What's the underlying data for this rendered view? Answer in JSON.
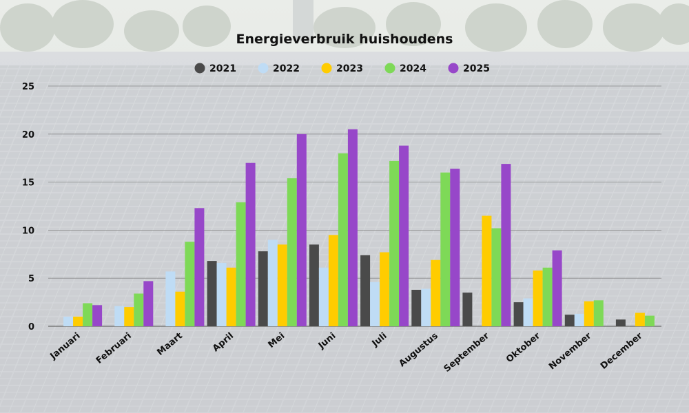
{
  "chart_data": {
    "type": "bar",
    "title": "Energieverbruik huishoudens",
    "categories": [
      "Januari",
      "Februari",
      "Maart",
      "April",
      "Mei",
      "Juni",
      "Juli",
      "Augustus",
      "September",
      "Oktober",
      "November",
      "December"
    ],
    "series": [
      {
        "name": "2021",
        "color": "#4a4a4a",
        "values": [
          0,
          0,
          0,
          6.8,
          7.8,
          8.5,
          7.4,
          3.8,
          3.5,
          2.5,
          1.2,
          0.7
        ]
      },
      {
        "name": "2022",
        "color": "#bfdcf5",
        "values": [
          1.0,
          2.1,
          5.7,
          6.6,
          9.0,
          6.1,
          4.6,
          3.9,
          0,
          2.9,
          1.3,
          0
        ]
      },
      {
        "name": "2023",
        "color": "#ffcc00",
        "values": [
          1.0,
          2.0,
          3.6,
          6.1,
          8.5,
          9.5,
          7.7,
          6.9,
          11.5,
          5.8,
          2.6,
          1.4
        ]
      },
      {
        "name": "2024",
        "color": "#7ed957",
        "values": [
          2.4,
          3.4,
          8.8,
          12.9,
          15.4,
          18.0,
          17.2,
          16.0,
          10.2,
          6.1,
          2.7,
          1.1
        ]
      },
      {
        "name": "2025",
        "color": "#9747c9",
        "values": [
          2.2,
          4.7,
          12.3,
          17.0,
          20.0,
          20.5,
          18.8,
          16.4,
          16.9,
          7.9,
          0,
          0
        ]
      }
    ],
    "ylim": [
      0,
      25
    ],
    "yticks": [
      0,
      5,
      10,
      15,
      20,
      25
    ],
    "grid": true,
    "legend": "top-center",
    "xlabel": "",
    "ylabel": ""
  }
}
